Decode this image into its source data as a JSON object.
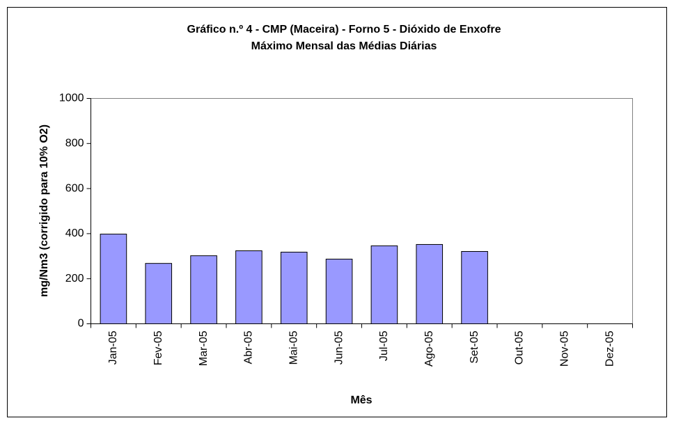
{
  "chart_data": {
    "type": "bar",
    "title": "Gráfico n.º 4  - CMP (Maceira) -  Forno 5 - Dióxido de Enxofre",
    "subtitle": "Máximo Mensal das Médias Diárias",
    "x_label": "Mês",
    "y_label": "mg/Nm3 (corrigido para 10% O2)",
    "categories": [
      "Jan-05",
      "Fev-05",
      "Mar-05",
      "Abr-05",
      "Mai-05",
      "Jun-05",
      "Jul-05",
      "Ago-05",
      "Set-05",
      "Out-05",
      "Nov-05",
      "Dez-05"
    ],
    "values": [
      398,
      268,
      302,
      324,
      318,
      287,
      346,
      352,
      321,
      null,
      null,
      null
    ],
    "color": "#9999ff",
    "ylim": [
      0,
      1000
    ],
    "yticks": [
      0,
      200,
      400,
      600,
      800,
      1000
    ],
    "grid": false
  }
}
